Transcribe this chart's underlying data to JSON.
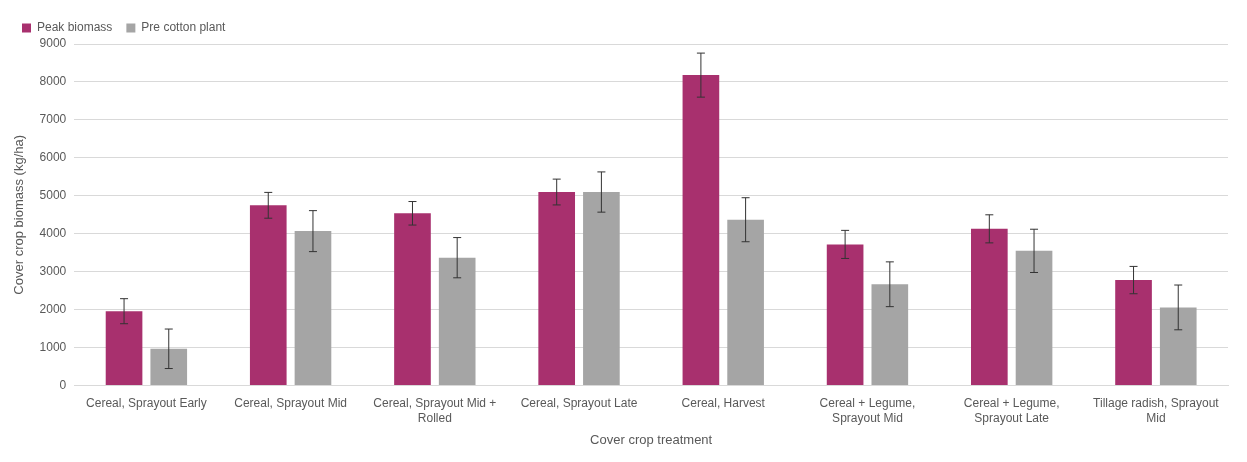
{
  "chart_data": {
    "type": "bar",
    "xlabel": "Cover crop treatment",
    "ylabel": "Cover crop biomass (kg/ha)",
    "categories": [
      "Cereal, Sprayout Early",
      "Cereal, Sprayout Mid",
      "Cereal, Sprayout Mid + Rolled",
      "Cereal, Sprayout Late",
      "Cereal, Harvest",
      "Cereal + Legume, Sprayout Mid",
      "Cereal + Legume, Sprayout Late",
      "Tillage radish, Sprayout Mid"
    ],
    "series": [
      {
        "name": "Peak biomass",
        "color": "#a8306e",
        "values": [
          1960,
          4750,
          4540,
          5100,
          8180,
          3720,
          4130,
          2780
        ],
        "errors": [
          330,
          340,
          310,
          340,
          580,
          370,
          370,
          360
        ]
      },
      {
        "name": "Pre cotton plant",
        "color": "#a5a5a5",
        "values": [
          970,
          4070,
          3370,
          5100,
          4370,
          2670,
          3550,
          2060
        ],
        "errors": [
          520,
          540,
          530,
          530,
          580,
          590,
          570,
          590
        ]
      }
    ],
    "ylim": [
      0,
      9000
    ],
    "yticks": [
      0,
      1000,
      2000,
      3000,
      4000,
      5000,
      6000,
      7000,
      8000,
      9000
    ],
    "grid": "y",
    "legend": "top left"
  }
}
